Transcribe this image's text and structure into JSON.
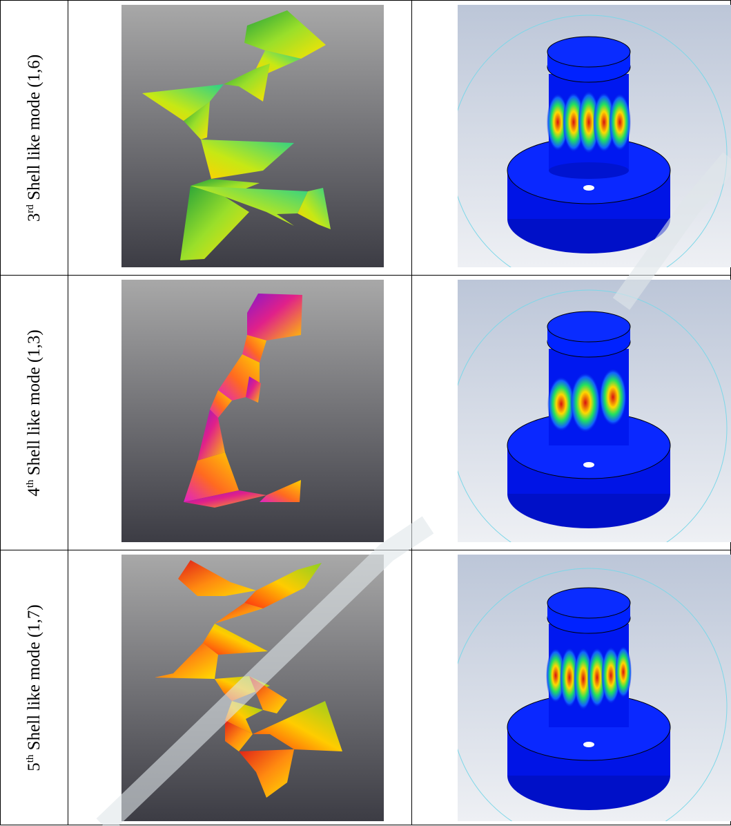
{
  "rows": [
    {
      "ordinal_num": "3",
      "ordinal_sup": "rd",
      "label_text": " Shell like mode (1,6)",
      "mode_color": "#8ddc2a"
    },
    {
      "ordinal_num": "4",
      "ordinal_sup": "th",
      "label_text": " Shell like mode (1,3)",
      "mode_color": "#e0208a"
    },
    {
      "ordinal_num": "5",
      "ordinal_sup": "th",
      "label_text": " Shell like mode (1,7)",
      "mode_color": "#e84a18"
    }
  ]
}
